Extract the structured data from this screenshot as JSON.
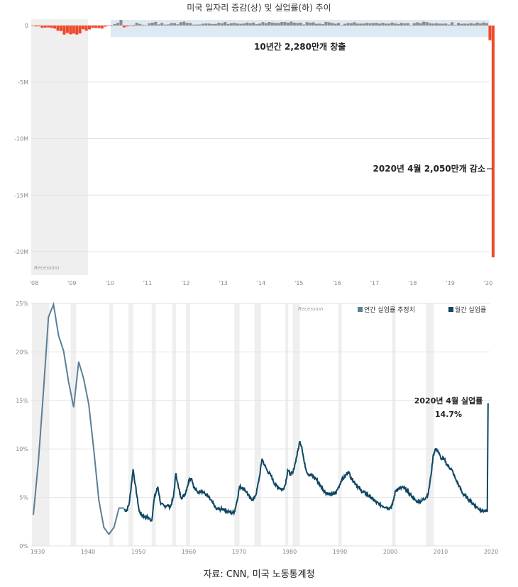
{
  "page_title": "미국 일자리 증감(상) 및 실업률(하) 추이",
  "source": "자료: CNN, 미국 노동통계청",
  "colors": {
    "gain_bar": "#8c8c8c",
    "loss_bar": "#f0482a",
    "gain_band": "#dde9f3",
    "recession_shade": "#efefef",
    "line_annual": "#5b7f97",
    "line_monthly": "#0e4663",
    "grid": "#e2e2e2"
  },
  "chart_data": [
    {
      "type": "bar",
      "title": "미국 일자리 증감",
      "unit": "jobs",
      "ylim": [
        -22000000,
        500000
      ],
      "y_ticks": [
        0,
        -5000000,
        -10000000,
        -15000000,
        -20000000
      ],
      "y_tick_labels": [
        "0",
        "-5M",
        "-10M",
        "-15M",
        "-20M"
      ],
      "x_ticks": [
        2008,
        2009,
        2010,
        2011,
        2012,
        2013,
        2014,
        2015,
        2016,
        2017,
        2018,
        2019,
        2020
      ],
      "x_tick_labels": [
        "'08",
        "'09",
        "'10",
        "'11",
        "'12",
        "'13",
        "'14",
        "'15",
        "'16",
        "'17",
        "'18",
        "'19",
        "'20"
      ],
      "recession_label": "Recession",
      "recessions": [
        [
          2008.0,
          2009.5
        ]
      ],
      "annotations": {
        "gain_label": "10년간 2,280만개 창출",
        "gain_period": [
          2010.1,
          2020.1
        ],
        "loss_label": "2020년 4월 2,050만개 감소"
      },
      "series": [
        {
          "start": 2008.0,
          "step": 0.0833333,
          "values": [
            -10000,
            -80000,
            -70000,
            -200000,
            -180000,
            -170000,
            -210000,
            -270000,
            -460000,
            -490000,
            -800000,
            -660000,
            -780000,
            -720000,
            -800000,
            -700000,
            -330000,
            -460000,
            -340000,
            -210000,
            -220000,
            -230000,
            -270000,
            -100000,
            -30000,
            -40000,
            130000,
            230000,
            500000,
            -160000,
            -80000,
            -20000,
            -60000,
            250000,
            140000,
            70000,
            10000,
            200000,
            250000,
            320000,
            100000,
            230000,
            80000,
            100000,
            220000,
            210000,
            110000,
            300000,
            340000,
            240000,
            220000,
            80000,
            90000,
            90000,
            160000,
            180000,
            170000,
            130000,
            140000,
            240000,
            190000,
            310000,
            140000,
            200000,
            230000,
            170000,
            150000,
            180000,
            260000,
            200000,
            260000,
            120000,
            170000,
            300000,
            200000,
            310000,
            260000,
            230000,
            220000,
            310000,
            310000,
            250000,
            340000,
            250000,
            230000,
            250000,
            90000,
            300000,
            250000,
            280000,
            150000,
            170000,
            120000,
            320000,
            280000,
            230000,
            160000,
            230000,
            20000,
            150000,
            220000,
            200000,
            290000,
            170000,
            170000,
            170000,
            230000,
            200000,
            210000,
            240000,
            170000,
            240000,
            170000,
            170000,
            260000,
            180000,
            140000,
            230000,
            190000,
            210000,
            40000,
            210000,
            280000,
            200000,
            340000,
            300000,
            200000,
            170000,
            200000,
            170000,
            160000,
            180000,
            90000,
            290000,
            60000,
            230000,
            150000,
            170000,
            160000,
            210000,
            160000,
            260000,
            180000,
            270000,
            210000,
            -1300000,
            -20500000
          ]
        }
      ]
    },
    {
      "type": "line",
      "title": "미국 실업률",
      "xlim": [
        1929.8,
        2020.3
      ],
      "ylim": [
        0,
        25
      ],
      "y_ticks": [
        0,
        5,
        10,
        15,
        20,
        25
      ],
      "y_tick_labels": [
        "0%",
        "5%",
        "10%",
        "15%",
        "20%",
        "25%"
      ],
      "x_ticks": [
        1930,
        1940,
        1950,
        1960,
        1970,
        1980,
        1990,
        2000,
        2010,
        2020
      ],
      "x_tick_labels": [
        "1930",
        "1940",
        "1950",
        "1960",
        "1970",
        "1980",
        "1990",
        "2000",
        "2010",
        "2020"
      ],
      "recession_label": "Recession",
      "recessions": [
        [
          1929.7,
          1933.2
        ],
        [
          1937.4,
          1938.5
        ],
        [
          1945.1,
          1945.8
        ],
        [
          1948.9,
          1949.8
        ],
        [
          1953.5,
          1954.3
        ],
        [
          1957.6,
          1958.3
        ],
        [
          1960.3,
          1961.1
        ],
        [
          1969.9,
          1970.9
        ],
        [
          1973.9,
          1975.2
        ],
        [
          1980.0,
          1980.6
        ],
        [
          1981.5,
          1982.9
        ],
        [
          1990.5,
          1991.2
        ],
        [
          2001.2,
          2001.9
        ],
        [
          2007.9,
          2009.5
        ]
      ],
      "legend": [
        "연간 실업률 추정치",
        "월간 실업률"
      ],
      "legend_placement": "top-right",
      "annotation": {
        "line1": "2020년 4월 실업률",
        "line2": "14.7%",
        "x": 2020.3,
        "y": 14.7
      },
      "series": [
        {
          "name": "연간 실업률 추정치",
          "x": [
            1930,
            1931,
            1932,
            1933,
            1934,
            1935,
            1936,
            1937,
            1938,
            1939,
            1940,
            1941,
            1942,
            1943,
            1944,
            1945,
            1946,
            1947,
            1948
          ],
          "values": [
            3.2,
            8.7,
            15.9,
            23.6,
            24.9,
            21.7,
            20.1,
            16.9,
            14.3,
            19.0,
            17.2,
            14.6,
            9.9,
            4.7,
            1.9,
            1.2,
            1.9,
            3.9,
            3.9
          ]
        },
        {
          "name": "월간 실업률",
          "x": [
            1948.0,
            1948.5,
            1949.0,
            1949.5,
            1949.8,
            1950.2,
            1950.6,
            1951.0,
            1951.5,
            1952.0,
            1952.5,
            1953.0,
            1953.5,
            1954.0,
            1954.7,
            1955.3,
            1956.0,
            1956.6,
            1957.2,
            1957.8,
            1958.3,
            1958.8,
            1959.3,
            1960.0,
            1960.5,
            1961.0,
            1961.4,
            1961.9,
            1962.6,
            1963.3,
            1964.0,
            1964.8,
            1965.5,
            1966.3,
            1967.0,
            1967.8,
            1968.5,
            1969.3,
            1969.9,
            1970.5,
            1970.9,
            1971.5,
            1972.3,
            1973.0,
            1973.7,
            1974.3,
            1974.9,
            1975.4,
            1975.9,
            1976.5,
            1977.2,
            1978.0,
            1978.8,
            1979.5,
            1980.0,
            1980.5,
            1981.0,
            1981.5,
            1982.0,
            1982.5,
            1982.9,
            1983.3,
            1983.8,
            1984.4,
            1985.0,
            1986.0,
            1987.0,
            1988.0,
            1989.0,
            1990.0,
            1990.6,
            1991.2,
            1991.8,
            1992.5,
            1993.1,
            1994.0,
            1995.0,
            1996.0,
            1997.0,
            1998.0,
            1999.0,
            2000.0,
            2000.8,
            2001.3,
            2001.9,
            2002.5,
            2003.5,
            2004.3,
            2005.0,
            2006.0,
            2007.0,
            2007.9,
            2008.4,
            2008.9,
            2009.4,
            2009.8,
            2010.3,
            2010.9,
            2011.6,
            2012.3,
            2013.0,
            2013.8,
            2014.5,
            2015.2,
            2016.0,
            2017.0,
            2018.0,
            2018.8,
            2019.5,
            2020.1,
            2020.25
          ],
          "values": [
            3.8,
            3.6,
            4.3,
            6.5,
            7.9,
            6.4,
            5.0,
            3.6,
            3.2,
            3.0,
            3.0,
            2.8,
            2.6,
            4.9,
            6.1,
            4.3,
            4.1,
            4.2,
            4.0,
            5.0,
            7.5,
            6.0,
            5.0,
            5.2,
            6.0,
            6.9,
            7.0,
            6.0,
            5.5,
            5.7,
            5.4,
            5.0,
            4.5,
            3.8,
            3.8,
            3.8,
            3.6,
            3.4,
            3.5,
            4.8,
            6.1,
            6.0,
            5.6,
            4.9,
            4.8,
            5.5,
            7.2,
            9.0,
            8.3,
            7.7,
            7.2,
            6.3,
            6.0,
            5.8,
            6.3,
            7.8,
            7.4,
            7.5,
            8.6,
            9.8,
            10.8,
            10.2,
            8.5,
            7.5,
            7.3,
            7.0,
            6.2,
            5.5,
            5.3,
            5.4,
            6.1,
            6.8,
            7.1,
            7.7,
            7.0,
            6.4,
            5.7,
            5.4,
            5.0,
            4.5,
            4.2,
            4.0,
            3.9,
            4.3,
            5.7,
            5.9,
            6.0,
            5.6,
            5.2,
            4.6,
            4.6,
            5.0,
            5.4,
            7.2,
            9.4,
            10.0,
            9.8,
            9.0,
            8.9,
            8.2,
            7.9,
            6.9,
            6.2,
            5.4,
            5.0,
            4.5,
            4.0,
            3.7,
            3.6,
            3.5,
            14.7
          ]
        }
      ]
    }
  ]
}
